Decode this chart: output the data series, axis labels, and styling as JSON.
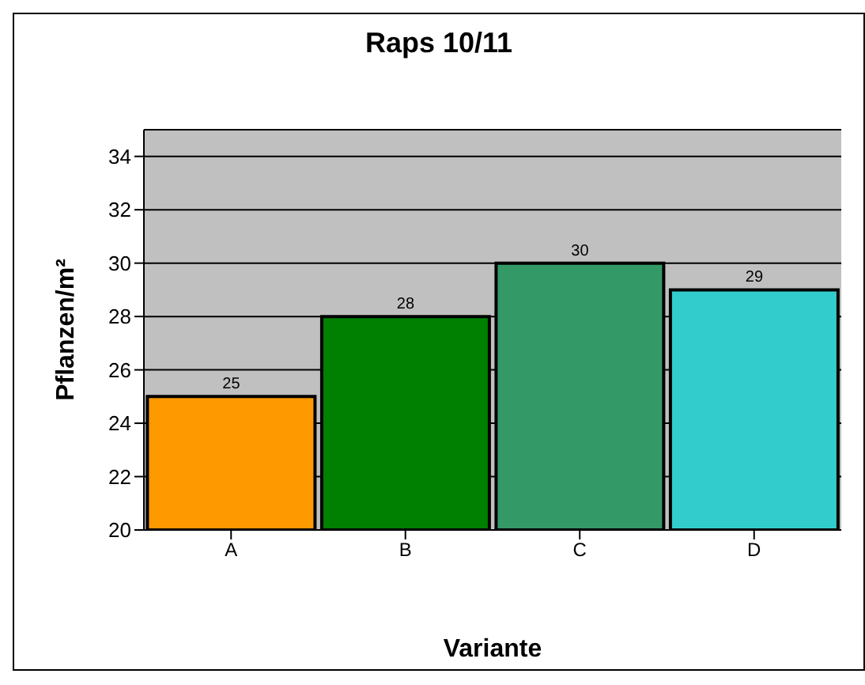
{
  "chart_data": {
    "type": "bar",
    "title": "Raps 10/11",
    "xlabel": "Variante",
    "ylabel": "Pflanzen/m²",
    "categories": [
      "A",
      "B",
      "C",
      "D"
    ],
    "values": [
      25,
      28,
      30,
      29
    ],
    "colors": [
      "#ff9900",
      "#008000",
      "#339966",
      "#33cccc"
    ],
    "ylim": [
      20,
      35
    ],
    "yticks": [
      20,
      22,
      24,
      26,
      28,
      30,
      32,
      34
    ],
    "grid": "y",
    "data_labels": true
  }
}
